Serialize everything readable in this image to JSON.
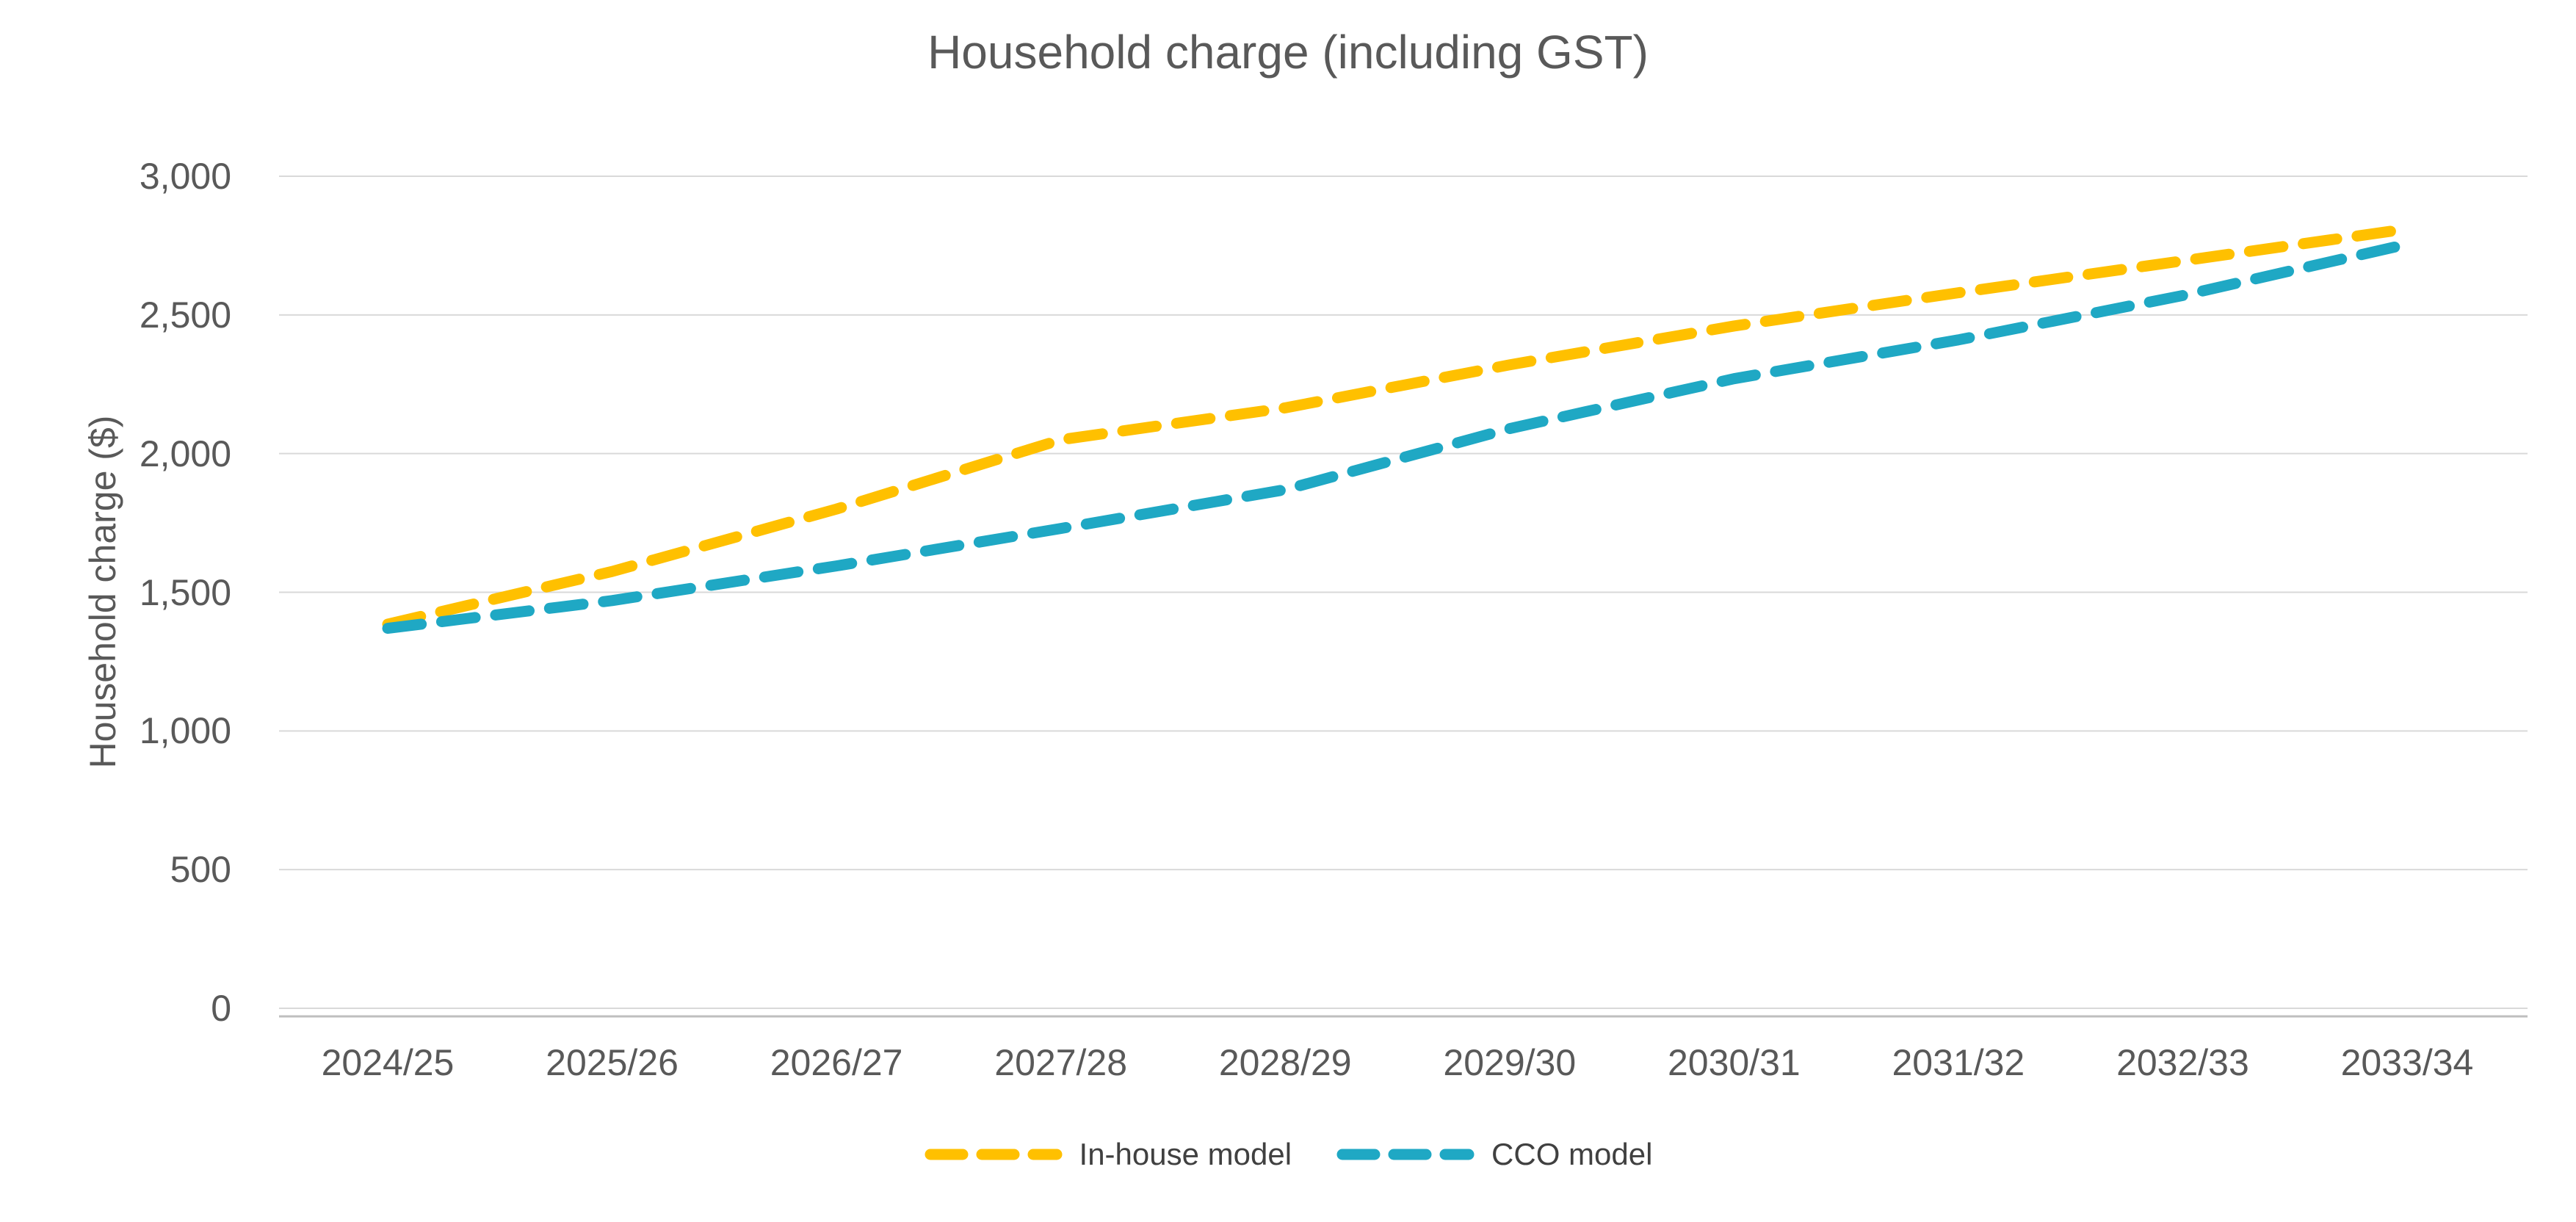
{
  "chart_data": {
    "type": "line",
    "title": "Household charge (including GST)",
    "xlabel": "",
    "ylabel": "Household charge ($)",
    "categories": [
      "2024/25",
      "2025/26",
      "2026/27",
      "2027/28",
      "2028/29",
      "2029/30",
      "2030/31",
      "2031/32",
      "2032/33",
      "2033/34"
    ],
    "series": [
      {
        "name": "In-house model",
        "color": "#FFC000",
        "values": [
          1385,
          1575,
          1800,
          2050,
          2165,
          2320,
          2460,
          2580,
          2695,
          2810
        ]
      },
      {
        "name": "CCO model",
        "color": "#1FA8C4",
        "values": [
          1370,
          1470,
          1595,
          1730,
          1870,
          2090,
          2270,
          2410,
          2570,
          2755
        ]
      }
    ],
    "ylim": [
      0,
      3000
    ],
    "ytick_interval": 500,
    "ytick_labels": [
      "0",
      "500",
      "1,000",
      "1,500",
      "2,000",
      "2,500",
      "3,000"
    ],
    "grid": true,
    "line_style": "dashed",
    "legend_position": "bottom"
  },
  "colors": {
    "text": "#595959",
    "gridline": "#D9D9D9",
    "axis_line": "#BFBFBF",
    "background": "#FFFFFF"
  }
}
